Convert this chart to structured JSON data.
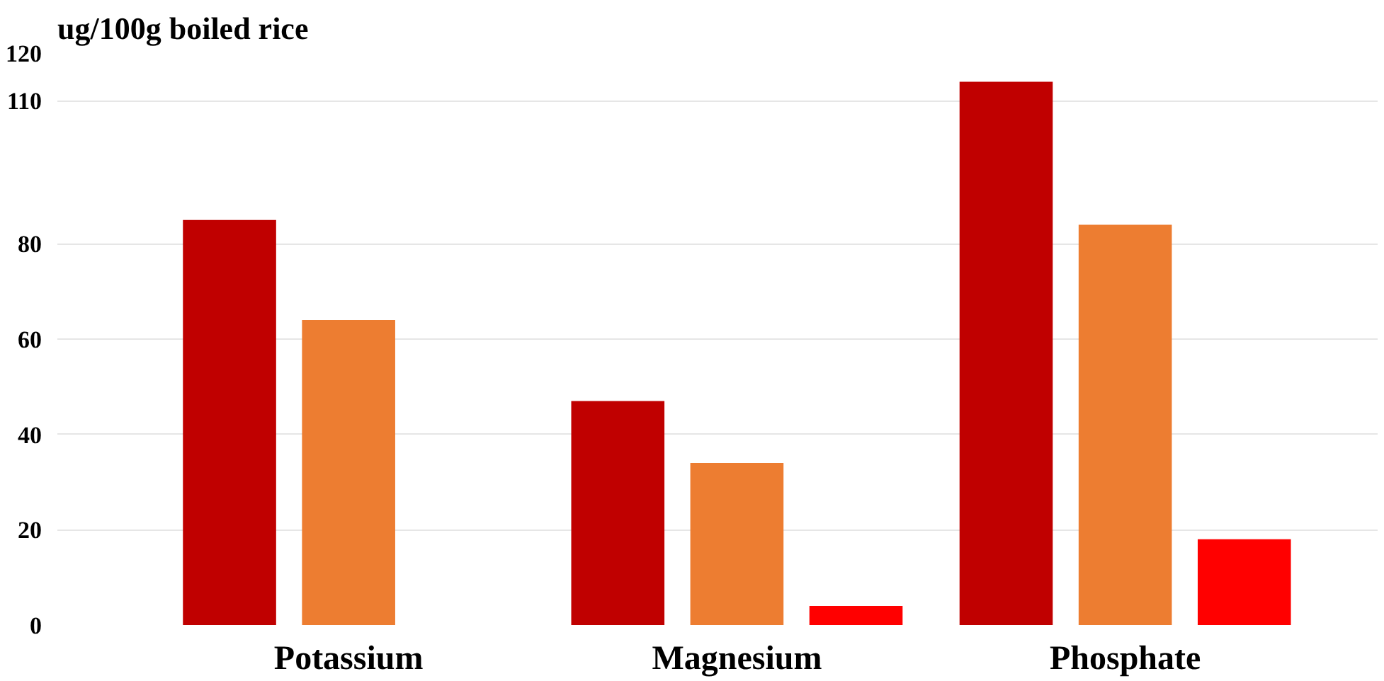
{
  "chart_data": {
    "type": "bar",
    "title": "ug/100g boiled rice",
    "categories": [
      "Potassium",
      "Magnesium",
      "Phosphate"
    ],
    "series": [
      {
        "color": "#c00000",
        "values": [
          85,
          47,
          114
        ]
      },
      {
        "color": "#ed7d31",
        "values": [
          64,
          34,
          84
        ]
      },
      {
        "color": "#ff0000",
        "values": [
          null,
          4,
          18
        ]
      }
    ],
    "ylim": [
      0,
      120
    ],
    "yticks": [
      0,
      20,
      40,
      60,
      80,
      110,
      120
    ],
    "grid": "y"
  }
}
